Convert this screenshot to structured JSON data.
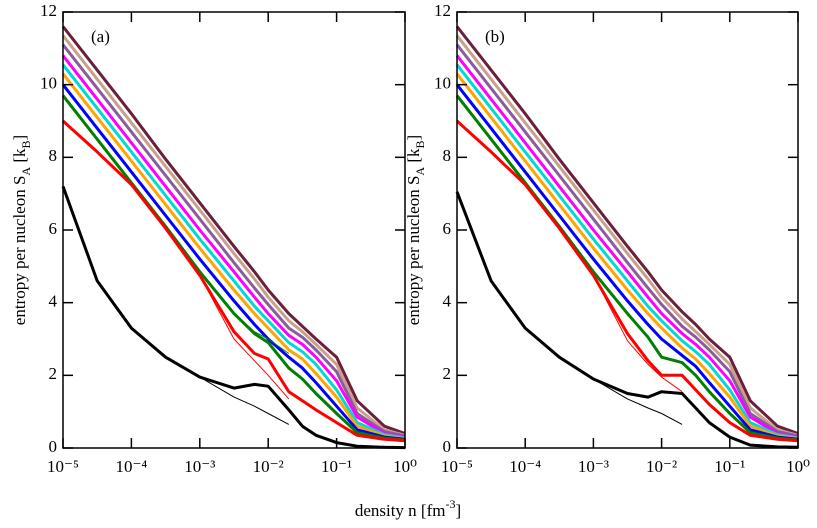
{
  "xlabel": [
    "density   n   [fm",
    "-3",
    "]"
  ],
  "chart_data": [
    {
      "type": "line",
      "panel_label": "(a)",
      "xscale": "log",
      "ylabel": [
        "entropy per nucleon   S",
        "A",
        "   [k",
        "B",
        "]"
      ],
      "xlim": [
        1e-05,
        1
      ],
      "ylim": [
        0,
        12
      ],
      "xticks": [
        {
          "value": 1e-05,
          "label": "10⁻⁵"
        },
        {
          "value": 0.0001,
          "label": "10⁻⁴"
        },
        {
          "value": 0.001,
          "label": "10⁻³"
        },
        {
          "value": 0.01,
          "label": "10⁻²"
        },
        {
          "value": 0.1,
          "label": "10⁻¹"
        },
        {
          "value": 1,
          "label": "10⁰"
        }
      ],
      "yticks": [
        0,
        2,
        4,
        6,
        8,
        10,
        12
      ],
      "x": [
        1e-05,
        3.16e-05,
        0.0001,
        0.000316,
        0.001,
        0.00316,
        0.00631,
        0.01,
        0.02,
        0.0316,
        0.05,
        0.1,
        0.2,
        0.5,
        1
      ],
      "series": [
        {
          "color": "#6b1f3a",
          "linewidth": 3,
          "values": [
            11.6,
            10.4,
            9.2,
            7.95,
            6.75,
            5.55,
            4.85,
            4.35,
            3.7,
            3.35,
            3.0,
            2.5,
            1.3,
            0.6,
            0.4
          ]
        },
        {
          "color": "#c8a08c",
          "linewidth": 3,
          "values": [
            11.35,
            10.15,
            8.95,
            7.75,
            6.55,
            5.35,
            4.65,
            4.15,
            3.5,
            3.2,
            2.85,
            2.3,
            1.1,
            0.5,
            0.35
          ]
        },
        {
          "color": "#8a5c9c",
          "linewidth": 3,
          "values": [
            11.1,
            9.9,
            8.7,
            7.5,
            6.3,
            5.1,
            4.4,
            3.95,
            3.3,
            3.05,
            2.7,
            2.1,
            0.95,
            0.45,
            0.33
          ]
        },
        {
          "color": "#ff00ff",
          "linewidth": 3,
          "values": [
            10.8,
            9.6,
            8.4,
            7.2,
            6.0,
            4.85,
            4.15,
            3.7,
            3.1,
            2.85,
            2.5,
            1.85,
            0.85,
            0.4,
            0.3
          ]
        },
        {
          "color": "#00d8d8",
          "linewidth": 3,
          "values": [
            10.55,
            9.35,
            8.15,
            6.95,
            5.75,
            4.6,
            3.9,
            3.5,
            2.9,
            2.65,
            2.3,
            1.6,
            0.7,
            0.37,
            0.28
          ]
        },
        {
          "color": "#ffa500",
          "linewidth": 3,
          "values": [
            10.3,
            9.1,
            7.9,
            6.7,
            5.5,
            4.35,
            3.7,
            3.3,
            2.7,
            2.45,
            2.05,
            1.4,
            0.6,
            0.33,
            0.26
          ]
        },
        {
          "color": "#0000ff",
          "linewidth": 3,
          "values": [
            10.0,
            8.8,
            7.6,
            6.4,
            5.2,
            4.05,
            3.4,
            3.0,
            2.5,
            2.2,
            1.8,
            1.15,
            0.5,
            0.3,
            0.24
          ]
        },
        {
          "color": "#008000",
          "linewidth": 3,
          "values": [
            9.7,
            8.5,
            7.3,
            6.1,
            4.85,
            3.7,
            3.15,
            2.9,
            2.2,
            1.9,
            1.5,
            0.95,
            0.42,
            0.27,
            0.22
          ]
        },
        {
          "color": "#ff0000",
          "linewidth": 3,
          "values": [
            9.0,
            8.15,
            7.25,
            6.05,
            4.75,
            3.2,
            2.6,
            2.45,
            1.55,
            1.3,
            1.05,
            0.7,
            0.35,
            0.24,
            0.2
          ]
        },
        {
          "color": "#000000",
          "linewidth": 3,
          "values": [
            7.2,
            4.6,
            3.3,
            2.5,
            1.95,
            1.65,
            1.75,
            1.7,
            1.05,
            0.6,
            0.35,
            0.15,
            0.05,
            0.02,
            0.01
          ]
        },
        {
          "color": "#008000",
          "linewidth": 1,
          "values": [
            null,
            null,
            null,
            null,
            null,
            3.7,
            3.2,
            3.0,
            2.6,
            null,
            null,
            null,
            null,
            null,
            null
          ]
        },
        {
          "color": "#ff0000",
          "linewidth": 1,
          "values": [
            null,
            null,
            null,
            null,
            4.75,
            3.0,
            2.4,
            2.0,
            1.35,
            null,
            null,
            null,
            null,
            null,
            null
          ]
        },
        {
          "color": "#000000",
          "linewidth": 1,
          "values": [
            null,
            null,
            null,
            null,
            1.95,
            1.4,
            1.15,
            0.95,
            0.65,
            null,
            null,
            null,
            null,
            null,
            null
          ]
        }
      ]
    },
    {
      "type": "line",
      "panel_label": "(b)",
      "xscale": "log",
      "ylabel": [
        "entropy per nucleon   S",
        "A",
        "   [k",
        "B",
        "]"
      ],
      "xlim": [
        1e-05,
        1
      ],
      "ylim": [
        0,
        12
      ],
      "xticks": [
        {
          "value": 1e-05,
          "label": "10⁻⁵"
        },
        {
          "value": 0.0001,
          "label": "10⁻⁴"
        },
        {
          "value": 0.001,
          "label": "10⁻³"
        },
        {
          "value": 0.01,
          "label": "10⁻²"
        },
        {
          "value": 0.1,
          "label": "10⁻¹"
        },
        {
          "value": 1,
          "label": "10⁰"
        }
      ],
      "yticks": [
        0,
        2,
        4,
        6,
        8,
        10,
        12
      ],
      "x": [
        1e-05,
        3.16e-05,
        0.0001,
        0.000316,
        0.001,
        0.00316,
        0.00631,
        0.01,
        0.02,
        0.0316,
        0.05,
        0.1,
        0.2,
        0.5,
        1
      ],
      "series": [
        {
          "color": "#6b1f3a",
          "linewidth": 3,
          "values": [
            11.6,
            10.4,
            9.2,
            7.95,
            6.75,
            5.55,
            4.85,
            4.35,
            3.75,
            3.4,
            3.0,
            2.5,
            1.3,
            0.6,
            0.4
          ]
        },
        {
          "color": "#c8a08c",
          "linewidth": 3,
          "values": [
            11.35,
            10.15,
            8.95,
            7.75,
            6.55,
            5.35,
            4.65,
            4.15,
            3.55,
            3.2,
            2.85,
            2.3,
            1.1,
            0.5,
            0.35
          ]
        },
        {
          "color": "#8a5c9c",
          "linewidth": 3,
          "values": [
            11.1,
            9.9,
            8.7,
            7.5,
            6.3,
            5.1,
            4.4,
            3.95,
            3.35,
            3.05,
            2.7,
            2.1,
            0.95,
            0.45,
            0.33
          ]
        },
        {
          "color": "#ff00ff",
          "linewidth": 3,
          "values": [
            10.8,
            9.6,
            8.4,
            7.2,
            6.0,
            4.85,
            4.15,
            3.7,
            3.15,
            2.85,
            2.5,
            1.85,
            0.85,
            0.4,
            0.3
          ]
        },
        {
          "color": "#00d8d8",
          "linewidth": 3,
          "values": [
            10.55,
            9.35,
            8.15,
            6.95,
            5.75,
            4.6,
            3.9,
            3.5,
            2.95,
            2.65,
            2.3,
            1.6,
            0.7,
            0.37,
            0.28
          ]
        },
        {
          "color": "#ffa500",
          "linewidth": 3,
          "values": [
            10.3,
            9.1,
            7.9,
            6.7,
            5.5,
            4.35,
            3.7,
            3.3,
            2.75,
            2.45,
            2.05,
            1.4,
            0.6,
            0.33,
            0.26
          ]
        },
        {
          "color": "#0000ff",
          "linewidth": 3,
          "values": [
            10.0,
            8.8,
            7.6,
            6.4,
            5.2,
            4.05,
            3.4,
            3.0,
            2.55,
            2.25,
            1.8,
            1.15,
            0.5,
            0.3,
            0.24
          ]
        },
        {
          "color": "#008000",
          "linewidth": 3,
          "values": [
            9.7,
            8.5,
            7.3,
            6.1,
            4.85,
            3.7,
            3.05,
            2.5,
            2.35,
            2.0,
            1.55,
            0.95,
            0.42,
            0.27,
            0.22
          ]
        },
        {
          "color": "#ff0000",
          "linewidth": 3,
          "values": [
            9.0,
            8.15,
            7.25,
            6.05,
            4.75,
            3.15,
            2.4,
            2.0,
            2.0,
            1.6,
            1.2,
            0.7,
            0.35,
            0.24,
            0.2
          ]
        },
        {
          "color": "#000000",
          "linewidth": 3,
          "values": [
            7.05,
            4.6,
            3.3,
            2.5,
            1.9,
            1.5,
            1.4,
            1.55,
            1.5,
            1.1,
            0.7,
            0.3,
            0.08,
            0.03,
            0.02
          ]
        },
        {
          "color": "#ff0000",
          "linewidth": 1,
          "values": [
            null,
            null,
            null,
            null,
            4.75,
            2.95,
            2.3,
            1.95,
            1.55,
            null,
            null,
            null,
            null,
            null,
            null
          ]
        },
        {
          "color": "#000000",
          "linewidth": 1,
          "values": [
            null,
            null,
            null,
            null,
            1.9,
            1.35,
            1.1,
            0.95,
            0.65,
            null,
            null,
            null,
            null,
            null,
            null
          ]
        }
      ]
    }
  ]
}
